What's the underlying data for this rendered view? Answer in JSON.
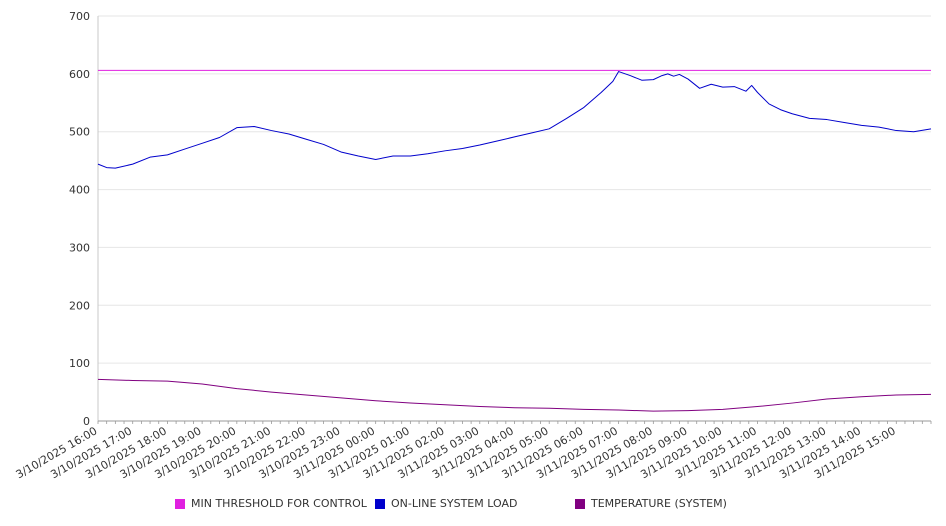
{
  "chart_data": {
    "type": "line",
    "title": "",
    "xlabel": "",
    "ylabel": "",
    "ylim": [
      0,
      700
    ],
    "yticks": [
      0,
      100,
      200,
      300,
      400,
      500,
      600,
      700
    ],
    "grid": "horizontal",
    "legend_position": "bottom",
    "x_tick_labels": [
      "3/10/2025 16:00",
      "3/10/2025 17:00",
      "3/10/2025 18:00",
      "3/10/2025 19:00",
      "3/10/2025 20:00",
      "3/10/2025 21:00",
      "3/10/2025 22:00",
      "3/10/2025 23:00",
      "3/11/2025 00:00",
      "3/11/2025 01:00",
      "3/11/2025 02:00",
      "3/11/2025 03:00",
      "3/11/2025 04:00",
      "3/11/2025 05:00",
      "3/11/2025 06:00",
      "3/11/2025 07:00",
      "3/11/2025 08:00",
      "3/11/2025 09:00",
      "3/11/2025 10:00",
      "3/11/2025 11:00",
      "3/11/2025 12:00",
      "3/11/2025 13:00",
      "3/11/2025 14:00",
      "3/11/2025 15:00"
    ],
    "x_start": "3/10/2025 16:00",
    "x_end": "3/11/2025 16:00",
    "series": [
      {
        "name": "MIN THRESHOLD FOR CONTROL",
        "color": "#e020e0",
        "x": [
          "3/10/2025 16:00",
          "3/11/2025 16:00"
        ],
        "values": [
          606,
          606
        ]
      },
      {
        "name": "ON-LINE SYSTEM LOAD",
        "color": "#0000cc",
        "x": [
          "3/10/2025 16:00",
          "3/10/2025 16:15",
          "3/10/2025 16:30",
          "3/10/2025 17:00",
          "3/10/2025 17:30",
          "3/10/2025 18:00",
          "3/10/2025 18:30",
          "3/10/2025 19:00",
          "3/10/2025 19:30",
          "3/10/2025 20:00",
          "3/10/2025 20:30",
          "3/10/2025 21:00",
          "3/10/2025 21:30",
          "3/10/2025 22:00",
          "3/10/2025 22:30",
          "3/10/2025 23:00",
          "3/10/2025 23:30",
          "3/11/2025 00:00",
          "3/11/2025 00:30",
          "3/11/2025 01:00",
          "3/11/2025 01:30",
          "3/11/2025 02:00",
          "3/11/2025 02:30",
          "3/11/2025 03:00",
          "3/11/2025 03:30",
          "3/11/2025 04:00",
          "3/11/2025 04:30",
          "3/11/2025 05:00",
          "3/11/2025 05:30",
          "3/11/2025 06:00",
          "3/11/2025 06:30",
          "3/11/2025 06:50",
          "3/11/2025 07:00",
          "3/11/2025 07:20",
          "3/11/2025 07:40",
          "3/11/2025 08:00",
          "3/11/2025 08:15",
          "3/11/2025 08:25",
          "3/11/2025 08:35",
          "3/11/2025 08:45",
          "3/11/2025 09:00",
          "3/11/2025 09:20",
          "3/11/2025 09:40",
          "3/11/2025 10:00",
          "3/11/2025 10:20",
          "3/11/2025 10:40",
          "3/11/2025 10:50",
          "3/11/2025 11:00",
          "3/11/2025 11:20",
          "3/11/2025 11:40",
          "3/11/2025 12:00",
          "3/11/2025 12:30",
          "3/11/2025 13:00",
          "3/11/2025 13:30",
          "3/11/2025 14:00",
          "3/11/2025 14:30",
          "3/11/2025 15:00",
          "3/11/2025 15:30",
          "3/11/2025 16:00"
        ],
        "values": [
          444,
          438,
          437,
          444,
          456,
          460,
          470,
          480,
          490,
          507,
          509,
          502,
          496,
          487,
          478,
          465,
          458,
          452,
          458,
          458,
          462,
          467,
          471,
          477,
          484,
          491,
          498,
          505,
          523,
          542,
          568,
          587,
          604,
          597,
          589,
          590,
          597,
          600,
          596,
          599,
          591,
          575,
          582,
          577,
          578,
          570,
          580,
          568,
          548,
          538,
          531,
          523,
          521,
          516,
          511,
          508,
          502,
          500,
          505
        ]
      },
      {
        "name": "TEMPERATURE (SYSTEM)",
        "color": "#800080",
        "x": [
          "3/10/2025 16:00",
          "3/10/2025 17:00",
          "3/10/2025 18:00",
          "3/10/2025 19:00",
          "3/10/2025 20:00",
          "3/10/2025 21:00",
          "3/10/2025 22:00",
          "3/10/2025 23:00",
          "3/11/2025 00:00",
          "3/11/2025 01:00",
          "3/11/2025 02:00",
          "3/11/2025 03:00",
          "3/11/2025 04:00",
          "3/11/2025 05:00",
          "3/11/2025 06:00",
          "3/11/2025 07:00",
          "3/11/2025 08:00",
          "3/11/2025 09:00",
          "3/11/2025 10:00",
          "3/11/2025 11:00",
          "3/11/2025 12:00",
          "3/11/2025 13:00",
          "3/11/2025 14:00",
          "3/11/2025 15:00",
          "3/11/2025 16:00"
        ],
        "values": [
          72,
          70,
          69,
          64,
          56,
          50,
          45,
          40,
          35,
          31,
          28,
          25,
          23,
          22,
          20,
          19,
          17,
          18,
          20,
          25,
          31,
          38,
          42,
          45,
          46
        ]
      }
    ]
  }
}
